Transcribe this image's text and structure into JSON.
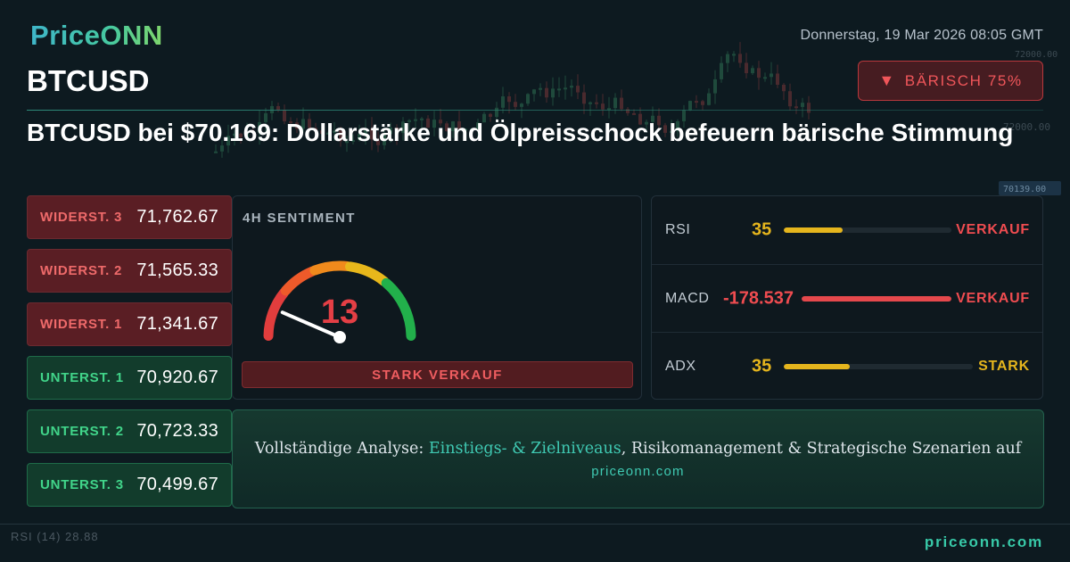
{
  "brand": {
    "logo": "PriceONN"
  },
  "header": {
    "datetime": "Donnerstag, 19 Mar 2026 08:05 GMT",
    "ticker": "BTCUSD",
    "badge": {
      "arrow": "▼",
      "label": "BÄRISCH 75%",
      "color": "#f0565a"
    }
  },
  "headline": "BTCUSD bei $70.169: Dollarstärke und Ölpreisschock befeuern bärische Stimmung",
  "levels": [
    {
      "label": "WIDERST. 3",
      "value": "71,762.67",
      "kind": "resistance"
    },
    {
      "label": "WIDERST. 2",
      "value": "71,565.33",
      "kind": "resistance"
    },
    {
      "label": "WIDERST. 1",
      "value": "71,341.67",
      "kind": "resistance"
    },
    {
      "label": "UNTERST. 1",
      "value": "70,920.67",
      "kind": "support"
    },
    {
      "label": "UNTERST. 2",
      "value": "70,723.33",
      "kind": "support"
    },
    {
      "label": "UNTERST. 3",
      "value": "70,499.67",
      "kind": "support"
    }
  ],
  "sentiment": {
    "title": "4H SENTIMENT",
    "score": "13",
    "score_value": 13,
    "signal": "STARK VERKAUF"
  },
  "indicators": [
    {
      "name": "RSI",
      "value": "35",
      "value_color": "#e5b51d",
      "bar_fraction": 0.35,
      "bar_color": "#e5b51d",
      "signal": "VERKAUF",
      "signal_color": "#ef4c50"
    },
    {
      "name": "MACD",
      "value": "-178.537",
      "value_color": "#ef4c50",
      "bar_fraction": 1.0,
      "bar_color": "#e5484c",
      "signal": "VERKAUF",
      "signal_color": "#ef4c50"
    },
    {
      "name": "ADX",
      "value": "35",
      "value_color": "#e5b51d",
      "bar_fraction": 0.35,
      "bar_color": "#e5b51d",
      "signal": "STARK",
      "signal_color": "#e5b51d"
    }
  ],
  "cta": {
    "pre": "Vollständige Analyse: ",
    "highlight": "Einstiegs- & Zielniveaus",
    "post": ", Risikomanagement & Strategische Szenarien auf",
    "url": "priceonn.com"
  },
  "background_chart": {
    "price_labels": [
      "72000.00",
      "72000.00",
      "70139.00"
    ],
    "indicator_label": "RSI",
    "indicator_period": "(14)",
    "indicator_value": "28.88"
  },
  "footer": {
    "url": "priceonn.com"
  },
  "icons": {
    "badge_arrow": "down-triangle-icon",
    "gauge": "gauge-icon"
  }
}
